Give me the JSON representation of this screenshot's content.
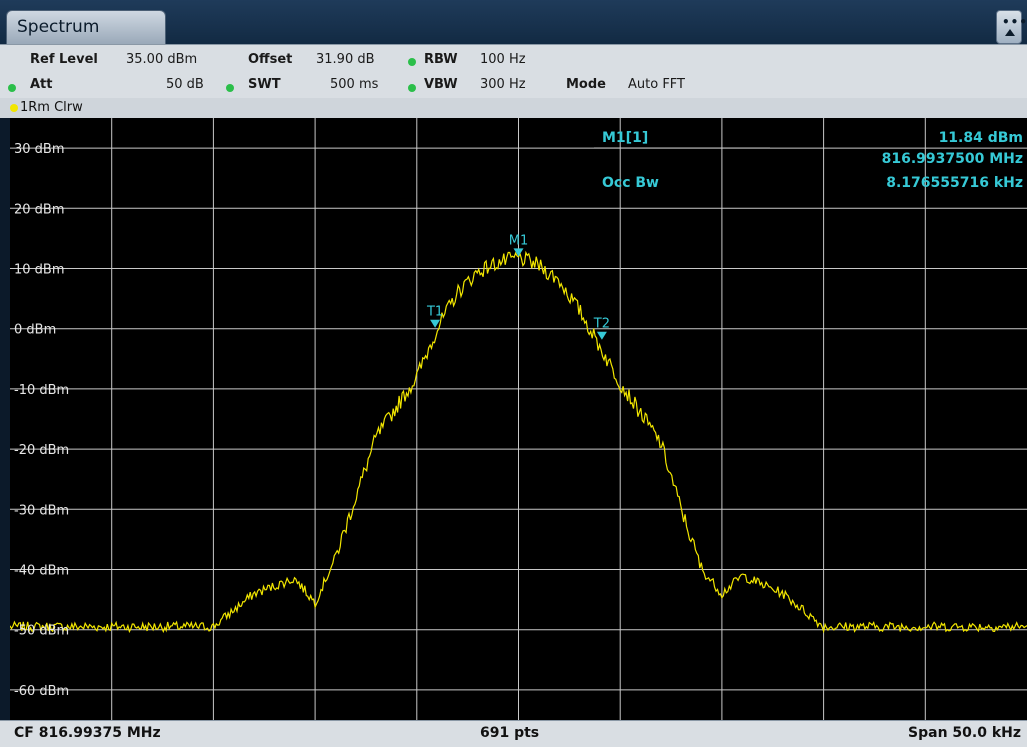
{
  "header": {
    "tab_label": "Spectrum",
    "menu_glyph": "•••"
  },
  "settings": {
    "ref_level": {
      "label": "Ref Level",
      "value": "35.00 dBm"
    },
    "offset": {
      "label": "Offset",
      "value": "31.90 dB"
    },
    "rbw": {
      "label": "RBW",
      "value": "100 Hz"
    },
    "att": {
      "label": "Att",
      "value": "50 dB"
    },
    "swt": {
      "label": "SWT",
      "value": "500 ms"
    },
    "vbw": {
      "label": "VBW",
      "value": "300 Hz"
    },
    "mode": {
      "label": "Mode",
      "value": "Auto FFT"
    }
  },
  "trace": {
    "label": "1Rm Clrw",
    "color": "#f2e600"
  },
  "marker_table": {
    "m1_label": "M1[1]",
    "m1_level": "11.84 dBm",
    "m1_freq": "816.9937500 MHz",
    "occbw_label": "Occ Bw",
    "occbw_value": "8.176555716 kHz"
  },
  "markers": {
    "m1": "M1",
    "t1": "T1",
    "t2": "T2"
  },
  "footer": {
    "cf": "CF 816.99375 MHz",
    "pts": "691 pts",
    "span": "Span 50.0 kHz"
  },
  "colors": {
    "trace": "#f2e600",
    "marker": "#36c9d6",
    "grid": "#c9c9c9",
    "status_dot": "#2bbf4a"
  },
  "chart_data": {
    "type": "line",
    "ylim": [
      -65,
      35
    ],
    "xlim": [
      -25,
      25
    ],
    "y_ticks": [
      "30 dBm",
      "20 dBm",
      "10 dBm",
      "0 dBm",
      "-10 dBm",
      "-20 dBm",
      "-30 dBm",
      "-40 dBm",
      "-50 dBm",
      "-60 dBm"
    ],
    "series": [
      {
        "x": [
          -25,
          -20,
          -15,
          -13,
          -11,
          -10,
          -9,
          -8,
          -7,
          -5,
          -4,
          -3,
          -2,
          -1,
          0,
          1,
          2,
          3,
          4,
          5,
          7,
          8,
          9,
          10,
          11,
          13,
          15,
          20,
          25
        ],
        "values": [
          -49.5,
          -49.5,
          -49.5,
          -44,
          -41.5,
          -45.5,
          -38,
          -28,
          -18,
          -8,
          0,
          6,
          9.5,
          11,
          11.8,
          10.5,
          8,
          3,
          -3,
          -9,
          -19,
          -30,
          -40,
          -44,
          -41,
          -44,
          -49.5,
          -49.5,
          -49.5
        ]
      }
    ],
    "marker_points": [
      {
        "name": "M1",
        "x": 0,
        "y": 11.84
      },
      {
        "name": "T1",
        "x": -4.1,
        "y": 0
      },
      {
        "name": "T2",
        "x": 4.1,
        "y": -2
      }
    ]
  }
}
